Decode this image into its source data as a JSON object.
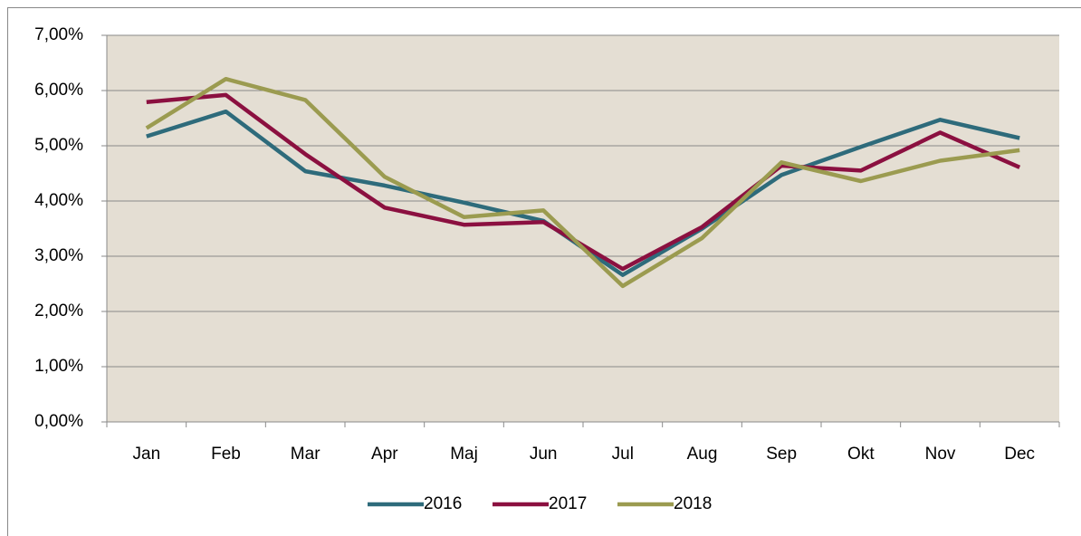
{
  "chart_data": {
    "type": "line",
    "categories": [
      "Jan",
      "Feb",
      "Mar",
      "Apr",
      "Maj",
      "Jun",
      "Jul",
      "Aug",
      "Sep",
      "Okt",
      "Nov",
      "Dec"
    ],
    "series": [
      {
        "name": "2016",
        "color": "#2e6b7b",
        "values": [
          5.17,
          5.62,
          4.54,
          4.28,
          3.97,
          3.64,
          2.66,
          3.5,
          4.47,
          4.98,
          5.47,
          5.14
        ]
      },
      {
        "name": "2017",
        "color": "#8b1040",
        "values": [
          5.79,
          5.92,
          4.85,
          3.88,
          3.57,
          3.62,
          2.77,
          3.53,
          4.64,
          4.55,
          5.24,
          4.61
        ]
      },
      {
        "name": "2018",
        "color": "#9b9b50",
        "values": [
          5.32,
          6.21,
          5.83,
          4.44,
          3.71,
          3.83,
          2.46,
          3.33,
          4.7,
          4.36,
          4.73,
          4.92
        ]
      }
    ],
    "ylim": [
      0,
      7
    ],
    "yticks": [
      {
        "value": 0,
        "label": "0,00%"
      },
      {
        "value": 1,
        "label": "1,00%"
      },
      {
        "value": 2,
        "label": "2,00%"
      },
      {
        "value": 3,
        "label": "3,00%"
      },
      {
        "value": 4,
        "label": "4,00%"
      },
      {
        "value": 5,
        "label": "5,00%"
      },
      {
        "value": 6,
        "label": "6,00%"
      },
      {
        "value": 7,
        "label": "7,00%"
      }
    ],
    "grid": true,
    "legend": "bottom"
  }
}
